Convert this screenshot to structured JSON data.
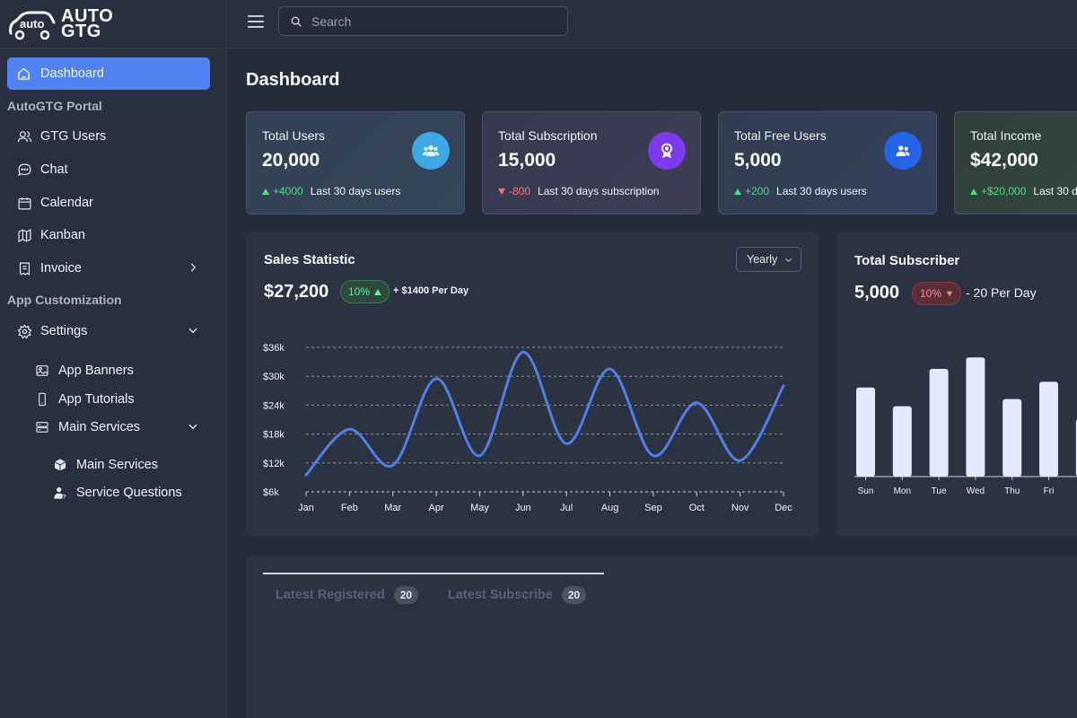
{
  "brand": {
    "logo_mark_text": "autoGTG",
    "logo_line1": "AUTO",
    "logo_line2": "GTG"
  },
  "sidebar": {
    "active": {
      "label": "Dashboard",
      "icon": "home-icon"
    },
    "section1": "AutoGTG Portal",
    "items": [
      {
        "label": "GTG Users",
        "icon": "users-icon"
      },
      {
        "label": "Chat",
        "icon": "chat-icon"
      },
      {
        "label": "Calendar",
        "icon": "calendar-icon"
      },
      {
        "label": "Kanban",
        "icon": "map-icon"
      },
      {
        "label": "Invoice",
        "icon": "receipt-icon"
      }
    ],
    "section2": "App Customization",
    "settings": {
      "label": "Settings",
      "icon": "gear-icon"
    },
    "settings_children": [
      {
        "label": "App Banners",
        "icon": "image-icon"
      },
      {
        "label": "App Tutorials",
        "icon": "phone-icon"
      },
      {
        "label": "Main Services",
        "icon": "server-icon"
      }
    ],
    "services_children": [
      {
        "label": "Main Services",
        "icon": "box-icon"
      },
      {
        "label": "Service Questions",
        "icon": "user-question-icon"
      }
    ]
  },
  "topbar": {
    "search_placeholder": "Search"
  },
  "page": {
    "title": "Dashboard"
  },
  "stats": [
    {
      "title": "Total Users",
      "value": "20,000",
      "delta": "+4000",
      "direction": "up",
      "note": "Last 30 days users",
      "icon": "users-group-icon",
      "color": "#3ea8e6"
    },
    {
      "title": "Total Subscription",
      "value": "15,000",
      "delta": "-800",
      "direction": "down",
      "note": "Last 30 days subscription",
      "icon": "award-icon",
      "color": "#7c3aed"
    },
    {
      "title": "Total Free Users",
      "value": "5,000",
      "delta": "+200",
      "direction": "up",
      "note": "Last 30 days users",
      "icon": "user-pair-icon",
      "color": "#2563eb"
    },
    {
      "title": "Total Income",
      "value": "$42,000",
      "delta": "+$20,000",
      "direction": "up",
      "note": "Last 30 days",
      "icon": "money-icon",
      "color": "#16a34a"
    }
  ],
  "sales": {
    "title": "Sales Statistic",
    "amount": "$27,200",
    "change": "10%",
    "per_day": "+ $1400 Per Day",
    "dropdown": "Yearly"
  },
  "subscriber": {
    "title": "Total Subscriber",
    "amount": "5,000",
    "change": "10%",
    "per_day": "- 20 Per Day"
  },
  "chart_data": [
    {
      "type": "line",
      "title": "Sales Statistic",
      "categories": [
        "Jan",
        "Feb",
        "Mar",
        "Apr",
        "May",
        "Jun",
        "Jul",
        "Aug",
        "Sep",
        "Oct",
        "Nov",
        "Dec"
      ],
      "values": [
        9500,
        19000,
        11500,
        29500,
        13500,
        35000,
        16000,
        31500,
        13500,
        24500,
        12500,
        28000
      ],
      "y_ticks": [
        "$6k",
        "$12k",
        "$18k",
        "$24k",
        "$30k",
        "$36k"
      ],
      "ylim": [
        6000,
        36000
      ],
      "grid": true,
      "color": "#4f7fe8"
    },
    {
      "type": "bar",
      "title": "Total Subscriber",
      "categories": [
        "Sun",
        "Mon",
        "Tue",
        "Wed",
        "Thu",
        "Fri",
        "Sat"
      ],
      "values": [
        62,
        49,
        75,
        83,
        54,
        66,
        40
      ],
      "color": "#e4e9fc"
    }
  ],
  "tabs": [
    {
      "label": "Latest Registered",
      "count": "20"
    },
    {
      "label": "Latest Subscribe",
      "count": "20"
    }
  ]
}
